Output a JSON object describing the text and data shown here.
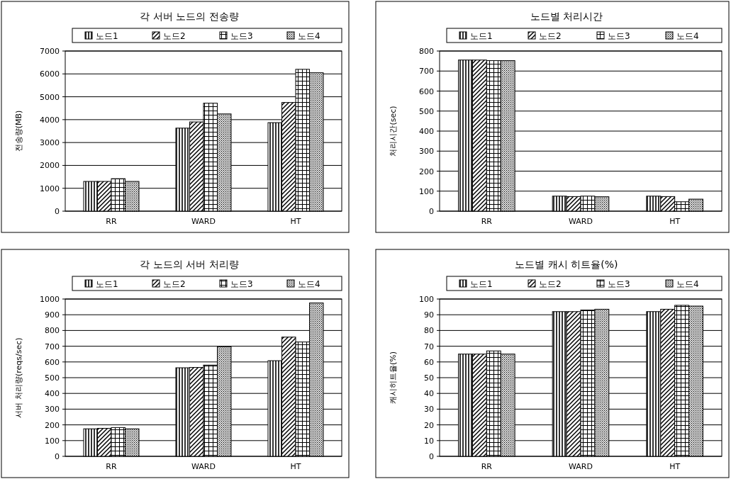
{
  "chart_data": [
    {
      "type": "bar",
      "title": "각 서버 노드의 전송량",
      "ylabel": "전송량(MB)",
      "categories": [
        "RR",
        "WARD",
        "HT"
      ],
      "ylim": [
        0,
        7000
      ],
      "yticks": [
        0,
        1000,
        2000,
        3000,
        4000,
        5000,
        6000,
        7000
      ],
      "grid": "y",
      "legend": "top",
      "series": [
        {
          "name": "노드1",
          "color": "#000000",
          "values": [
            1300,
            3630,
            3870
          ]
        },
        {
          "name": "노드2",
          "color": "#000000",
          "values": [
            1300,
            3900,
            4750
          ]
        },
        {
          "name": "노드3",
          "color": "#000000",
          "values": [
            1420,
            4720,
            6200
          ]
        },
        {
          "name": "노드4",
          "color": "#000000",
          "values": [
            1300,
            4250,
            6050
          ]
        }
      ]
    },
    {
      "type": "bar",
      "title": "노드별 처리시간",
      "ylabel": "처리시간(sec)",
      "categories": [
        "RR",
        "WARD",
        "HT"
      ],
      "ylim": [
        0,
        800
      ],
      "yticks": [
        0,
        100,
        200,
        300,
        400,
        500,
        600,
        700,
        800
      ],
      "grid": "y",
      "legend": "top",
      "series": [
        {
          "name": "노드1",
          "color": "#000000",
          "values": [
            755,
            75,
            75
          ]
        },
        {
          "name": "노드2",
          "color": "#000000",
          "values": [
            755,
            73,
            73
          ]
        },
        {
          "name": "노드3",
          "color": "#000000",
          "values": [
            752,
            75,
            47
          ]
        },
        {
          "name": "노드4",
          "color": "#000000",
          "values": [
            752,
            72,
            60
          ]
        }
      ]
    },
    {
      "type": "bar",
      "title": "각 노드의 서버 처리량",
      "ylabel": "서버 처리량(reqs/sec)",
      "categories": [
        "RR",
        "WARD",
        "HT"
      ],
      "ylim": [
        0,
        1000
      ],
      "yticks": [
        0,
        100,
        200,
        300,
        400,
        500,
        600,
        700,
        800,
        900,
        1000
      ],
      "grid": "y",
      "legend": "top",
      "series": [
        {
          "name": "노드1",
          "color": "#000000",
          "values": [
            175,
            563,
            608
          ]
        },
        {
          "name": "노드2",
          "color": "#000000",
          "values": [
            178,
            565,
            758
          ]
        },
        {
          "name": "노드3",
          "color": "#000000",
          "values": [
            183,
            580,
            727
          ]
        },
        {
          "name": "노드4",
          "color": "#000000",
          "values": [
            175,
            697,
            975
          ]
        }
      ]
    },
    {
      "type": "bar",
      "title": "노드별 캐시 히트율(%)",
      "ylabel": "캐시히트율(%)",
      "categories": [
        "RR",
        "WARD",
        "HT"
      ],
      "ylim": [
        0,
        100
      ],
      "yticks": [
        0,
        10,
        20,
        30,
        40,
        50,
        60,
        70,
        80,
        90,
        100
      ],
      "grid": "y",
      "legend": "top",
      "series": [
        {
          "name": "노드1",
          "color": "#000000",
          "values": [
            65,
            92,
            92
          ]
        },
        {
          "name": "노드2",
          "color": "#000000",
          "values": [
            65,
            92,
            93.5
          ]
        },
        {
          "name": "노드3",
          "color": "#000000",
          "values": [
            67,
            93,
            96
          ]
        },
        {
          "name": "노드4",
          "color": "#000000",
          "values": [
            65,
            93.5,
            95.5
          ]
        }
      ]
    }
  ]
}
